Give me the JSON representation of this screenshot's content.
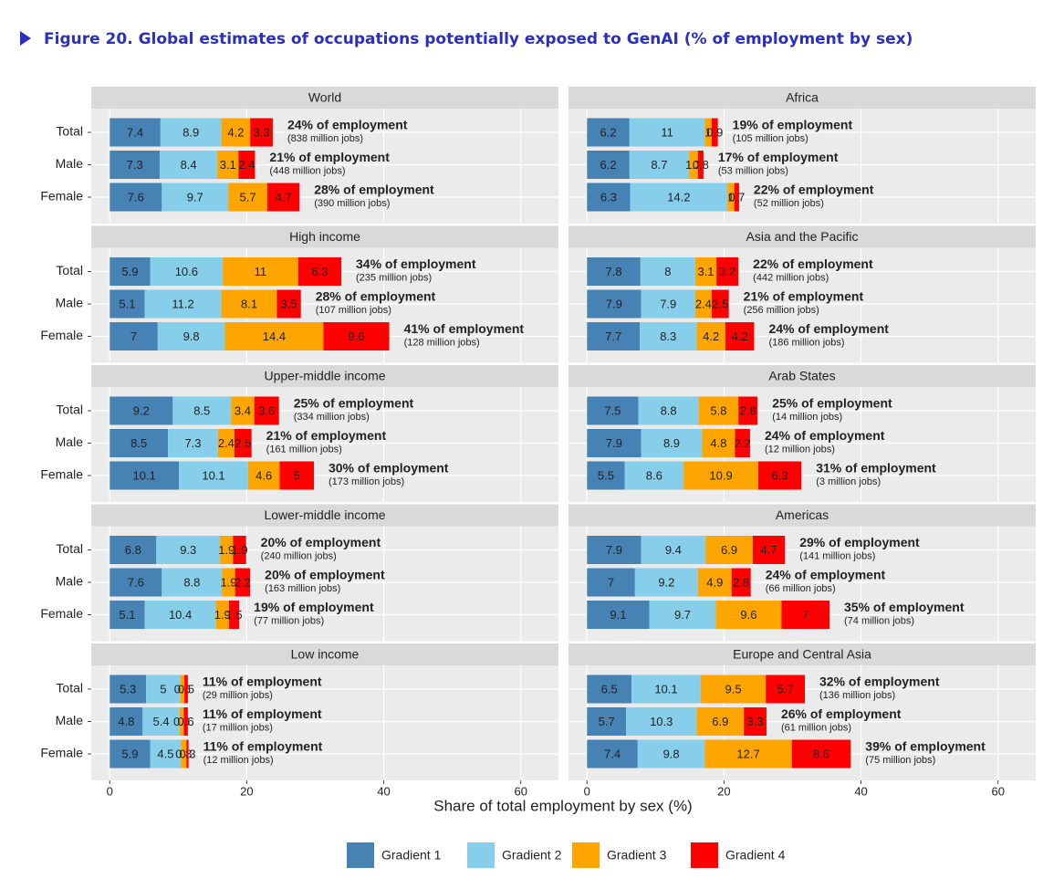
{
  "chart_data": {
    "type": "bar",
    "stacked": true,
    "title": "Figure 20. Global estimates of occupations potentially exposed to GenAI (% of employment by sex)",
    "xlabel": "Share of total employment by sex (%)",
    "xlim": [
      -2.7,
      65.5
    ],
    "xticks": [
      0,
      20,
      40,
      60
    ],
    "grid": true,
    "legend": "bottom",
    "categories": [
      "Total",
      "Male",
      "Female"
    ],
    "series": [
      {
        "name": "Gradient 1",
        "color": "#4682b4"
      },
      {
        "name": "Gradient 2",
        "color": "#87ceeb"
      },
      {
        "name": "Gradient 3",
        "color": "#ffa500"
      },
      {
        "name": "Gradient 4",
        "color": "#ff0000"
      }
    ],
    "panels": [
      {
        "title": "World",
        "values": [
          [
            7.4,
            8.9,
            4.2,
            3.3
          ],
          [
            7.3,
            8.4,
            3.1,
            2.4
          ],
          [
            7.6,
            9.7,
            5.7,
            4.7
          ]
        ],
        "annotations": [
          "24% of employment",
          "21% of employment",
          "28% of employment"
        ],
        "notes": [
          "(838 million jobs)",
          "(448 million jobs)",
          "(390 million jobs)"
        ]
      },
      {
        "title": "Africa",
        "values": [
          [
            6.2,
            11,
            1,
            0.9
          ],
          [
            6.2,
            8.7,
            1.3,
            0.8
          ],
          [
            6.3,
            14.2,
            1,
            0.7
          ]
        ],
        "annotations": [
          "19% of employment",
          "17% of employment",
          "22% of employment"
        ],
        "notes": [
          "(105 million jobs)",
          "(53 million jobs)",
          "(52 million jobs)"
        ]
      },
      {
        "title": "High income",
        "values": [
          [
            5.9,
            10.6,
            11,
            6.3
          ],
          [
            5.1,
            11.2,
            8.1,
            3.5
          ],
          [
            7,
            9.8,
            14.4,
            9.6
          ]
        ],
        "annotations": [
          "34% of employment",
          "28% of employment",
          "41% of employment"
        ],
        "notes": [
          "(235 million jobs)",
          "(107 million jobs)",
          "(128 million jobs)"
        ]
      },
      {
        "title": "Asia and the Pacific",
        "values": [
          [
            7.8,
            8,
            3.1,
            3.2
          ],
          [
            7.9,
            7.9,
            2.4,
            2.5
          ],
          [
            7.7,
            8.3,
            4.2,
            4.2
          ]
        ],
        "annotations": [
          "22% of employment",
          "21% of employment",
          "24% of employment"
        ],
        "notes": [
          "(442 million jobs)",
          "(256 million jobs)",
          "(186 million jobs)"
        ]
      },
      {
        "title": "Upper-middle income",
        "values": [
          [
            9.2,
            8.5,
            3.4,
            3.6
          ],
          [
            8.5,
            7.3,
            2.4,
            2.5
          ],
          [
            10.1,
            10.1,
            4.6,
            5
          ]
        ],
        "annotations": [
          "25% of employment",
          "21% of employment",
          "30% of employment"
        ],
        "notes": [
          "(334 million jobs)",
          "(161 million jobs)",
          "(173 million jobs)"
        ]
      },
      {
        "title": "Arab States",
        "values": [
          [
            7.5,
            8.8,
            5.8,
            2.8
          ],
          [
            7.9,
            8.9,
            4.8,
            2.2
          ],
          [
            5.5,
            8.6,
            10.9,
            6.3
          ]
        ],
        "annotations": [
          "25% of employment",
          "24% of employment",
          "31% of employment"
        ],
        "notes": [
          "(14 million jobs)",
          "(12 million jobs)",
          "(3 million jobs)"
        ]
      },
      {
        "title": "Lower-middle income",
        "values": [
          [
            6.8,
            9.3,
            1.9,
            1.9
          ],
          [
            7.6,
            8.8,
            1.9,
            2.2
          ],
          [
            5.1,
            10.4,
            1.9,
            1.5
          ]
        ],
        "annotations": [
          "20% of employment",
          "20% of employment",
          "19% of employment"
        ],
        "notes": [
          "(240 million jobs)",
          "(163 million jobs)",
          "(77 million jobs)"
        ]
      },
      {
        "title": "Americas",
        "values": [
          [
            7.9,
            9.4,
            6.9,
            4.7
          ],
          [
            7,
            9.2,
            4.9,
            2.8
          ],
          [
            9.1,
            9.7,
            9.6,
            7
          ]
        ],
        "annotations": [
          "29% of employment",
          "24% of employment",
          "35% of employment"
        ],
        "notes": [
          "(141 million jobs)",
          "(66 million jobs)",
          "(74 million jobs)"
        ]
      },
      {
        "title": "Low income",
        "values": [
          [
            5.3,
            5,
            0.6,
            0.5
          ],
          [
            4.8,
            5.4,
            0.6,
            0.6
          ],
          [
            5.9,
            4.5,
            0.8,
            0.3
          ]
        ],
        "annotations": [
          "11% of employment",
          "11% of employment",
          "11% of employment"
        ],
        "notes": [
          "(29 million jobs)",
          "(17 million jobs)",
          "(12 million jobs)"
        ]
      },
      {
        "title": "Europe and Central Asia",
        "values": [
          [
            6.5,
            10.1,
            9.5,
            5.7
          ],
          [
            5.7,
            10.3,
            6.9,
            3.3
          ],
          [
            7.4,
            9.8,
            12.7,
            8.6
          ]
        ],
        "annotations": [
          "32% of employment",
          "26% of employment",
          "39% of employment"
        ],
        "notes": [
          "(136 million jobs)",
          "(61 million jobs)",
          "(75 million jobs)"
        ]
      }
    ]
  }
}
